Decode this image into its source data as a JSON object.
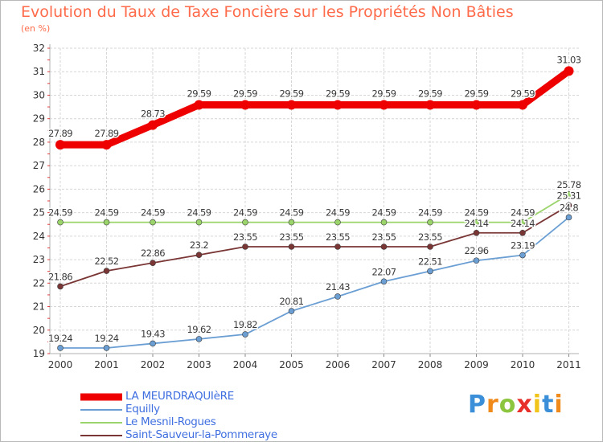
{
  "chart_data": {
    "type": "line",
    "title": "Evolution du Taux de Taxe Foncière sur les Propriétés Non Bâties",
    "unit_label": "(en %)",
    "xlabel": "",
    "ylabel": "",
    "ylim": [
      19,
      32
    ],
    "yticks": [
      19,
      20,
      21,
      22,
      23,
      24,
      25,
      26,
      27,
      28,
      29,
      30,
      31,
      32
    ],
    "categories": [
      "2000",
      "2001",
      "2002",
      "2003",
      "2004",
      "2005",
      "2006",
      "2007",
      "2008",
      "2009",
      "2010",
      "2011"
    ],
    "grid": true,
    "legend_position": "bottom-left",
    "series": [
      {
        "name": "LA MEURDRAQUIèRE",
        "color": "#ee0000",
        "highlight": true,
        "values": [
          27.89,
          27.89,
          28.73,
          29.59,
          29.59,
          29.59,
          29.59,
          29.59,
          29.59,
          29.59,
          29.59,
          31.03
        ],
        "labels": [
          "27.89",
          "27.89",
          "28.73",
          "29.59",
          "29.59",
          "29.59",
          "29.59",
          "29.59",
          "29.59",
          "29.59",
          "29.59",
          "31.03"
        ]
      },
      {
        "name": "Equilly",
        "color": "#6b9fd4",
        "highlight": false,
        "values": [
          19.24,
          19.24,
          19.43,
          19.62,
          19.82,
          20.81,
          21.43,
          22.07,
          22.51,
          22.96,
          23.19,
          24.8
        ],
        "labels": [
          "19.24",
          "19.24",
          "19.43",
          "19.62",
          "19.82",
          "20.81",
          "21.43",
          "22.07",
          "22.51",
          "22.96",
          "23.19",
          "24.8"
        ]
      },
      {
        "name": "Le Mesnil-Rogues",
        "color": "#9ad46a",
        "highlight": false,
        "values": [
          24.59,
          24.59,
          24.59,
          24.59,
          24.59,
          24.59,
          24.59,
          24.59,
          24.59,
          24.59,
          24.59,
          25.78
        ],
        "labels": [
          "24.59",
          "24.59",
          "24.59",
          "24.59",
          "24.59",
          "24.59",
          "24.59",
          "24.59",
          "24.59",
          "24.59",
          "24.59",
          "25.78"
        ]
      },
      {
        "name": "Saint-Sauveur-la-Pommeraye",
        "color": "#7a3535",
        "highlight": false,
        "values": [
          21.86,
          22.52,
          22.86,
          23.2,
          23.55,
          23.55,
          23.55,
          23.55,
          23.55,
          24.14,
          24.14,
          25.31
        ],
        "labels": [
          "21.86",
          "22.52",
          "22.86",
          "23.2",
          "23.55",
          "23.55",
          "23.55",
          "23.55",
          "23.55",
          "24.14",
          "24.14",
          "25.31"
        ]
      }
    ]
  },
  "logo": {
    "letters": [
      "P",
      "r",
      "o",
      "x",
      "i",
      "t",
      "i"
    ],
    "colors": [
      "#3a8fd8",
      "#f08a1a",
      "#8cc63f",
      "#e8302a",
      "#f0c419",
      "#3a8fd8",
      "#f08a1a"
    ]
  }
}
